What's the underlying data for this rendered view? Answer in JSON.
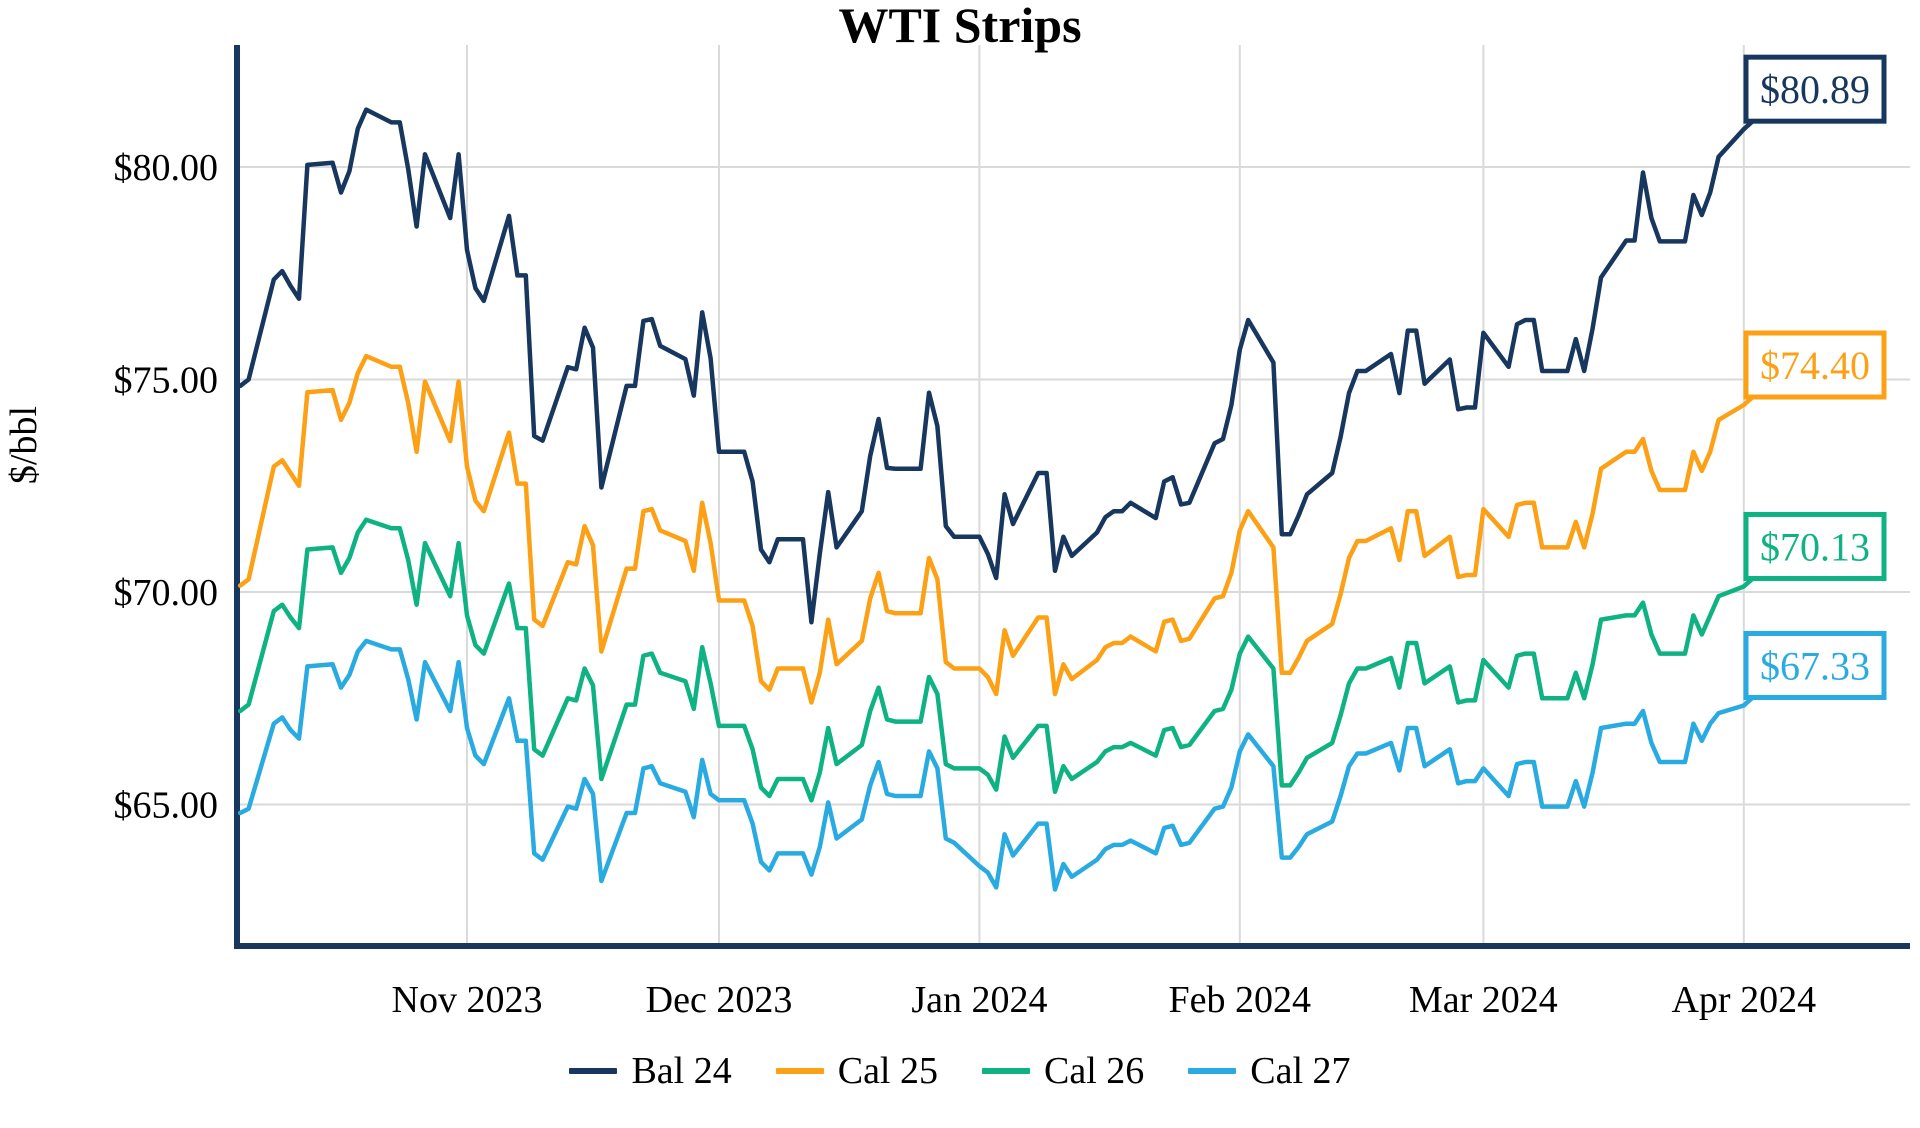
{
  "title": "WTI Strips",
  "ylabel": "$/bbl",
  "legend": [
    "Bal 24",
    "Cal 25",
    "Cal 26",
    "Cal 27"
  ],
  "end_labels": [
    "$80.89",
    "$74.40",
    "$70.13",
    "$67.33"
  ],
  "colors": {
    "navy": "#17375E",
    "orange": "#FCA016",
    "green": "#0FB283",
    "cyan": "#29ABE2",
    "gridline": "#DADADA",
    "text": "#000000",
    "background": "#FFFFFF"
  },
  "chart_data": {
    "type": "line",
    "title": "WTI Strips",
    "xlabel": "",
    "ylabel": "$/bbl",
    "grid": true,
    "legend_position": "bottom",
    "y_ticks": [
      {
        "value": 80,
        "label": "$80.00"
      },
      {
        "value": 75,
        "label": "$75.00"
      },
      {
        "value": 70,
        "label": "$70.00"
      },
      {
        "value": 65,
        "label": "$65.00"
      }
    ],
    "x_ticks": [
      {
        "date": "2023-11-01",
        "label": "Nov 2023"
      },
      {
        "date": "2023-12-01",
        "label": "Dec 2023"
      },
      {
        "date": "2024-01-01",
        "label": "Jan 2024"
      },
      {
        "date": "2024-02-01",
        "label": "Feb 2024"
      },
      {
        "date": "2024-03-01",
        "label": "Mar 2024"
      },
      {
        "date": "2024-04-01",
        "label": "Apr 2024"
      }
    ],
    "ylim": [
      61.7,
      82.9
    ],
    "x_range": [
      "2023-10-05",
      "2024-04-01"
    ],
    "dates": [
      "2023-10-05",
      "2023-10-06",
      "2023-10-09",
      "2023-10-10",
      "2023-10-11",
      "2023-10-12",
      "2023-10-13",
      "2023-10-16",
      "2023-10-17",
      "2023-10-18",
      "2023-10-19",
      "2023-10-20",
      "2023-10-23",
      "2023-10-24",
      "2023-10-25",
      "2023-10-26",
      "2023-10-27",
      "2023-10-30",
      "2023-10-31",
      "2023-11-01",
      "2023-11-02",
      "2023-11-03",
      "2023-11-06",
      "2023-11-07",
      "2023-11-08",
      "2023-11-09",
      "2023-11-10",
      "2023-11-13",
      "2023-11-14",
      "2023-11-15",
      "2023-11-16",
      "2023-11-17",
      "2023-11-20",
      "2023-11-21",
      "2023-11-22",
      "2023-11-23",
      "2023-11-24",
      "2023-11-27",
      "2023-11-28",
      "2023-11-29",
      "2023-11-30",
      "2023-12-01",
      "2023-12-04",
      "2023-12-05",
      "2023-12-06",
      "2023-12-07",
      "2023-12-08",
      "2023-12-11",
      "2023-12-12",
      "2023-12-13",
      "2023-12-14",
      "2023-12-15",
      "2023-12-18",
      "2023-12-19",
      "2023-12-20",
      "2023-12-21",
      "2023-12-22",
      "2023-12-25",
      "2023-12-26",
      "2023-12-27",
      "2023-12-28",
      "2023-12-29",
      "2024-01-01",
      "2024-01-02",
      "2024-01-03",
      "2024-01-04",
      "2024-01-05",
      "2024-01-08",
      "2024-01-09",
      "2024-01-10",
      "2024-01-11",
      "2024-01-12",
      "2024-01-15",
      "2024-01-16",
      "2024-01-17",
      "2024-01-18",
      "2024-01-19",
      "2024-01-22",
      "2024-01-23",
      "2024-01-24",
      "2024-01-25",
      "2024-01-26",
      "2024-01-29",
      "2024-01-30",
      "2024-01-31",
      "2024-02-01",
      "2024-02-02",
      "2024-02-05",
      "2024-02-06",
      "2024-02-07",
      "2024-02-08",
      "2024-02-09",
      "2024-02-12",
      "2024-02-13",
      "2024-02-14",
      "2024-02-15",
      "2024-02-16",
      "2024-02-19",
      "2024-02-20",
      "2024-02-21",
      "2024-02-22",
      "2024-02-23",
      "2024-02-26",
      "2024-02-27",
      "2024-02-28",
      "2024-02-29",
      "2024-03-01",
      "2024-03-04",
      "2024-03-05",
      "2024-03-06",
      "2024-03-07",
      "2024-03-08",
      "2024-03-11",
      "2024-03-12",
      "2024-03-13",
      "2024-03-14",
      "2024-03-15",
      "2024-03-18",
      "2024-03-19",
      "2024-03-20",
      "2024-03-21",
      "2024-03-22",
      "2024-03-25",
      "2024-03-26",
      "2024-03-27",
      "2024-03-28",
      "2024-03-29",
      "2024-04-01"
    ],
    "series": [
      {
        "name": "Bal 24",
        "color_key": "navy",
        "end_label": "$80.89",
        "end_value": 80.89,
        "values": [
          74.85,
          75.0,
          77.35,
          77.55,
          77.2,
          76.9,
          80.05,
          80.1,
          79.4,
          79.9,
          80.9,
          81.35,
          81.05,
          81.05,
          79.95,
          78.6,
          80.3,
          78.8,
          80.3,
          78.05,
          77.15,
          76.85,
          78.85,
          77.45,
          77.45,
          73.67,
          73.56,
          75.29,
          75.24,
          76.22,
          75.75,
          72.46,
          74.85,
          74.85,
          76.38,
          76.42,
          75.79,
          75.48,
          74.62,
          76.58,
          75.5,
          73.3,
          73.3,
          72.6,
          71.0,
          70.7,
          71.24,
          71.24,
          69.29,
          70.9,
          72.35,
          71.05,
          71.9,
          73.2,
          74.07,
          72.92,
          72.9,
          72.9,
          74.69,
          73.9,
          71.55,
          71.3,
          71.3,
          70.9,
          70.33,
          72.3,
          71.6,
          72.8,
          72.8,
          70.5,
          71.3,
          70.85,
          71.4,
          71.76,
          71.9,
          71.9,
          72.1,
          71.74,
          72.6,
          72.7,
          72.06,
          72.1,
          73.5,
          73.6,
          74.4,
          75.7,
          76.4,
          75.4,
          71.36,
          71.36,
          71.8,
          72.3,
          72.8,
          73.65,
          74.68,
          75.2,
          75.2,
          75.6,
          74.68,
          76.15,
          76.15,
          74.9,
          75.47,
          74.3,
          74.34,
          74.34,
          76.1,
          75.3,
          76.3,
          76.4,
          76.4,
          75.2,
          75.2,
          75.95,
          75.2,
          76.2,
          77.4,
          78.27,
          78.27,
          79.87,
          78.8,
          78.25,
          78.25,
          79.34,
          78.87,
          79.4,
          80.24,
          80.89
        ]
      },
      {
        "name": "Cal 25",
        "color_key": "orange",
        "end_label": "$74.40",
        "end_value": 74.4,
        "values": [
          70.15,
          70.3,
          72.95,
          73.1,
          72.8,
          72.5,
          74.7,
          74.75,
          74.05,
          74.45,
          75.15,
          75.55,
          75.3,
          75.3,
          74.45,
          73.3,
          74.95,
          73.55,
          74.95,
          72.95,
          72.15,
          71.9,
          73.75,
          72.55,
          72.55,
          69.35,
          69.2,
          70.7,
          70.65,
          71.55,
          71.1,
          68.6,
          70.55,
          70.55,
          71.9,
          71.95,
          71.45,
          71.2,
          70.5,
          72.1,
          71.15,
          69.8,
          69.8,
          69.2,
          67.9,
          67.7,
          68.2,
          68.2,
          67.4,
          68.1,
          69.35,
          68.3,
          68.85,
          69.85,
          70.45,
          69.55,
          69.5,
          69.5,
          70.8,
          70.3,
          68.35,
          68.2,
          68.2,
          68.0,
          67.6,
          69.1,
          68.5,
          69.4,
          69.4,
          67.6,
          68.3,
          67.95,
          68.4,
          68.7,
          68.8,
          68.8,
          68.95,
          68.6,
          69.3,
          69.35,
          68.85,
          68.9,
          69.85,
          69.9,
          70.45,
          71.45,
          71.9,
          71.05,
          68.1,
          68.1,
          68.45,
          68.85,
          69.25,
          69.95,
          70.8,
          71.2,
          71.2,
          71.5,
          70.75,
          71.9,
          71.9,
          70.85,
          71.3,
          70.35,
          70.4,
          70.4,
          71.95,
          71.3,
          72.05,
          72.1,
          72.1,
          71.05,
          71.05,
          71.65,
          71.05,
          71.85,
          72.9,
          73.3,
          73.3,
          73.6,
          72.85,
          72.4,
          72.4,
          73.3,
          72.85,
          73.3,
          74.05,
          74.4
        ]
      },
      {
        "name": "Cal 26",
        "color_key": "green",
        "end_label": "$70.13",
        "end_value": 70.13,
        "values": [
          67.2,
          67.35,
          69.55,
          69.7,
          69.4,
          69.15,
          71.0,
          71.05,
          70.45,
          70.8,
          71.4,
          71.7,
          71.5,
          71.5,
          70.75,
          69.7,
          71.15,
          69.9,
          71.15,
          69.45,
          68.75,
          68.55,
          70.2,
          69.15,
          69.15,
          66.3,
          66.15,
          67.5,
          67.45,
          68.2,
          67.8,
          65.6,
          67.35,
          67.35,
          68.5,
          68.55,
          68.1,
          67.9,
          67.25,
          68.7,
          67.85,
          66.85,
          66.85,
          66.3,
          65.4,
          65.2,
          65.6,
          65.6,
          65.1,
          65.75,
          66.8,
          65.95,
          66.4,
          67.2,
          67.75,
          67.0,
          66.95,
          66.95,
          68.0,
          67.6,
          65.95,
          65.85,
          65.85,
          65.7,
          65.35,
          66.6,
          66.1,
          66.85,
          66.85,
          65.3,
          65.9,
          65.6,
          66.0,
          66.25,
          66.35,
          66.35,
          66.45,
          66.15,
          66.75,
          66.8,
          66.35,
          66.4,
          67.2,
          67.25,
          67.7,
          68.55,
          68.95,
          68.2,
          65.45,
          65.45,
          65.75,
          66.1,
          66.45,
          67.1,
          67.85,
          68.2,
          68.2,
          68.45,
          67.75,
          68.8,
          68.8,
          67.85,
          68.25,
          67.4,
          67.45,
          67.45,
          68.4,
          67.75,
          68.5,
          68.55,
          68.55,
          67.5,
          67.5,
          68.1,
          67.5,
          68.3,
          69.35,
          69.45,
          69.45,
          69.75,
          69.0,
          68.55,
          68.55,
          69.45,
          69.0,
          69.45,
          69.9,
          70.13
        ]
      },
      {
        "name": "Cal 27",
        "color_key": "cyan",
        "end_label": "$67.33",
        "end_value": 67.33,
        "values": [
          64.8,
          64.9,
          66.9,
          67.05,
          66.75,
          66.55,
          68.25,
          68.3,
          67.75,
          68.05,
          68.6,
          68.85,
          68.65,
          68.65,
          67.95,
          67.0,
          68.35,
          67.2,
          68.35,
          66.8,
          66.15,
          65.95,
          67.5,
          66.5,
          66.5,
          63.85,
          63.7,
          64.95,
          64.9,
          65.6,
          65.25,
          63.2,
          64.8,
          64.8,
          65.85,
          65.9,
          65.5,
          65.3,
          64.7,
          66.05,
          65.25,
          65.1,
          65.1,
          64.55,
          63.65,
          63.45,
          63.85,
          63.85,
          63.35,
          64.0,
          65.05,
          64.2,
          64.65,
          65.45,
          66.0,
          65.25,
          65.2,
          65.2,
          66.25,
          65.85,
          64.2,
          64.1,
          63.55,
          63.4,
          63.05,
          64.3,
          63.8,
          64.55,
          64.55,
          63.0,
          63.6,
          63.3,
          63.7,
          63.95,
          64.05,
          64.05,
          64.15,
          63.85,
          64.45,
          64.5,
          64.05,
          64.1,
          64.9,
          64.95,
          65.4,
          66.25,
          66.65,
          65.9,
          63.75,
          63.75,
          64.0,
          64.3,
          64.6,
          65.2,
          65.9,
          66.2,
          66.2,
          66.45,
          65.8,
          66.8,
          66.8,
          65.9,
          66.3,
          65.5,
          65.55,
          65.55,
          65.85,
          65.2,
          65.95,
          66.0,
          66.0,
          64.95,
          64.95,
          65.55,
          64.95,
          65.75,
          66.8,
          66.9,
          66.9,
          67.2,
          66.45,
          66.0,
          66.0,
          66.9,
          66.5,
          66.9,
          67.15,
          67.33
        ]
      }
    ]
  }
}
